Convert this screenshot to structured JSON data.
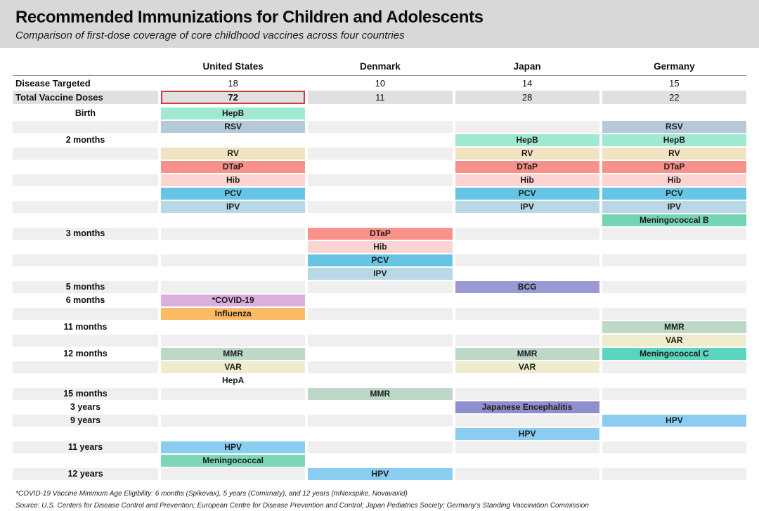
{
  "header": {
    "title": "Recommended Immunizations for Children and Adolescents",
    "subtitle": "Comparison of first-dose coverage of core childhood vaccines across four countries"
  },
  "colors": {
    "header_bg": "#d8d8d8",
    "row_shade": "#efefef",
    "stat_shade": "#e0e0e0",
    "highlight_border": "#d93636"
  },
  "footnotes": [
    "*COVID-19 Vaccine Minimum Age Eligibility: 6 months (Spikevax), 5 years (Comirnaty), and 12 years (mNexspike, Novavaxid)",
    "Source: U.S. Centers for Disease Control and Prevention; European Centre for Disease Prevention and Control; Japan Pediatrics Society; Germany's Standing Vaccination Commission"
  ],
  "chart_data": {
    "type": "table",
    "title": "Recommended Immunizations for Children and Adolescents",
    "subtitle": "Comparison of first-dose coverage of core childhood vaccines across four countries",
    "columns": [
      "United States",
      "Denmark",
      "Japan",
      "Germany"
    ],
    "stats": [
      {
        "label": "Disease Targeted",
        "values": [
          "18",
          "10",
          "14",
          "15"
        ]
      },
      {
        "label": "Total Vaccine Doses",
        "values": [
          "72",
          "11",
          "28",
          "22"
        ],
        "highlighted_column": 0
      }
    ],
    "vaccine_colors": {
      "HepB": "#9fe8d1",
      "RSV": "#b5c9d8",
      "RV": "#f0e3c2",
      "DTaP": "#f9918b",
      "Hib": "#fcd5d2",
      "PCV": "#66c5e4",
      "IPV": "#b9d8e5",
      "Meningococcal B": "#74d4b4",
      "BCG": "#9a99d3",
      "*COVID-19": "#dcaede",
      "Influenza": "#fbba63",
      "MMR": "#bed8c8",
      "VAR": "#eeeccd",
      "Meningococcal C": "#5ad5be",
      "HepA": "none",
      "Japanese Encephalitis": "#908fcd",
      "HPV": "#8bccf1",
      "Meningococcal": "#7cd8b4"
    },
    "age_rows": [
      {
        "label": "Birth",
        "shade": false,
        "cells": [
          "HepB",
          null,
          null,
          null
        ]
      },
      {
        "label": "",
        "shade": true,
        "cells": [
          "RSV",
          null,
          null,
          "RSV"
        ]
      },
      {
        "label": "2 months",
        "shade": false,
        "cells": [
          null,
          null,
          "HepB",
          "HepB"
        ]
      },
      {
        "label": "",
        "shade": true,
        "cells": [
          "RV",
          null,
          "RV",
          "RV"
        ]
      },
      {
        "label": "",
        "shade": false,
        "cells": [
          "DTaP",
          null,
          "DTaP",
          "DTaP"
        ]
      },
      {
        "label": "",
        "shade": true,
        "cells": [
          "Hib",
          null,
          "Hib",
          "Hib"
        ]
      },
      {
        "label": "",
        "shade": false,
        "cells": [
          "PCV",
          null,
          "PCV",
          "PCV"
        ]
      },
      {
        "label": "",
        "shade": true,
        "cells": [
          "IPV",
          null,
          "IPV",
          "IPV"
        ]
      },
      {
        "label": "",
        "shade": false,
        "cells": [
          null,
          null,
          null,
          "Meningococcal B"
        ]
      },
      {
        "label": "3 months",
        "shade": true,
        "cells": [
          null,
          "DTaP",
          null,
          null
        ]
      },
      {
        "label": "",
        "shade": false,
        "cells": [
          null,
          "Hib",
          null,
          null
        ]
      },
      {
        "label": "",
        "shade": true,
        "cells": [
          null,
          "PCV",
          null,
          null
        ]
      },
      {
        "label": "",
        "shade": false,
        "cells": [
          null,
          "IPV",
          null,
          null
        ]
      },
      {
        "label": "5 months",
        "shade": true,
        "cells": [
          null,
          null,
          "BCG",
          null
        ]
      },
      {
        "label": "6 months",
        "shade": false,
        "cells": [
          "*COVID-19",
          null,
          null,
          null
        ]
      },
      {
        "label": "",
        "shade": true,
        "cells": [
          "Influenza",
          null,
          null,
          null
        ]
      },
      {
        "label": "11 months",
        "shade": false,
        "cells": [
          null,
          null,
          null,
          "MMR"
        ]
      },
      {
        "label": "",
        "shade": true,
        "cells": [
          null,
          null,
          null,
          "VAR"
        ]
      },
      {
        "label": "12 months",
        "shade": false,
        "cells": [
          "MMR",
          null,
          "MMR",
          "Meningococcal C"
        ]
      },
      {
        "label": "",
        "shade": true,
        "cells": [
          "VAR",
          null,
          "VAR",
          null
        ]
      },
      {
        "label": "",
        "shade": false,
        "cells": [
          "HepA",
          null,
          null,
          null
        ]
      },
      {
        "label": "15 months",
        "shade": true,
        "cells": [
          null,
          "MMR",
          null,
          null
        ]
      },
      {
        "label": "3 years",
        "shade": false,
        "cells": [
          null,
          null,
          "Japanese Encephalitis",
          null
        ]
      },
      {
        "label": "9 years",
        "shade": true,
        "cells": [
          null,
          null,
          null,
          "HPV"
        ]
      },
      {
        "label": "",
        "shade": false,
        "cells": [
          null,
          null,
          "HPV",
          null
        ]
      },
      {
        "label": "11 years",
        "shade": true,
        "cells": [
          "HPV",
          null,
          null,
          null
        ]
      },
      {
        "label": "",
        "shade": false,
        "cells": [
          "Meningococcal",
          null,
          null,
          null
        ]
      },
      {
        "label": "12 years",
        "shade": true,
        "cells": [
          null,
          "HPV",
          null,
          null
        ]
      }
    ]
  }
}
